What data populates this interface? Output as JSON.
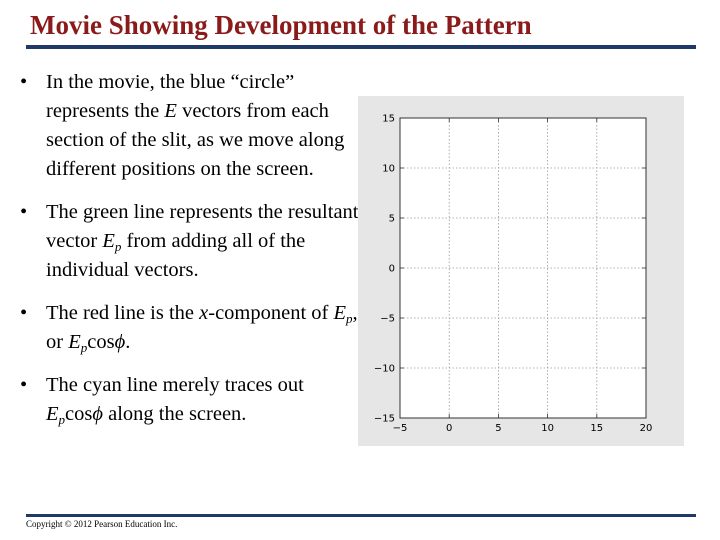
{
  "slide": {
    "title": "Movie Showing Development of the Pattern",
    "copyright": "Copyright © 2012 Pearson Education Inc."
  },
  "bullets": [
    {
      "marker": "•",
      "parts": [
        "In the movie, the blue “circle” represents the ",
        "E",
        " vectors from each section of the slit, as we move along different positions on the screen."
      ]
    },
    {
      "marker": "•",
      "parts": [
        "The green line represents the resultant vector ",
        "E",
        "p",
        " from adding all of the individual vectors."
      ]
    },
    {
      "marker": "•",
      "parts": [
        "The red line is the ",
        "x",
        "-component of ",
        "E",
        "p",
        ", or ",
        "E",
        "p",
        "cos",
        "ϕ",
        "."
      ]
    },
    {
      "marker": "•",
      "parts": [
        "The cyan line merely traces out ",
        "E",
        "p",
        "cos",
        "ϕ",
        " along the screen."
      ]
    }
  ],
  "chart_data": {
    "type": "line",
    "title": "",
    "xlabel": "",
    "ylabel": "",
    "xlim": [
      -5,
      20
    ],
    "ylim": [
      -15,
      15
    ],
    "x_ticks": [
      "−5",
      "0",
      "5",
      "10",
      "15",
      "20"
    ],
    "y_ticks": [
      "15",
      "10",
      "5",
      "0",
      "−5",
      "−10",
      "−15"
    ],
    "grid": true,
    "series": []
  }
}
